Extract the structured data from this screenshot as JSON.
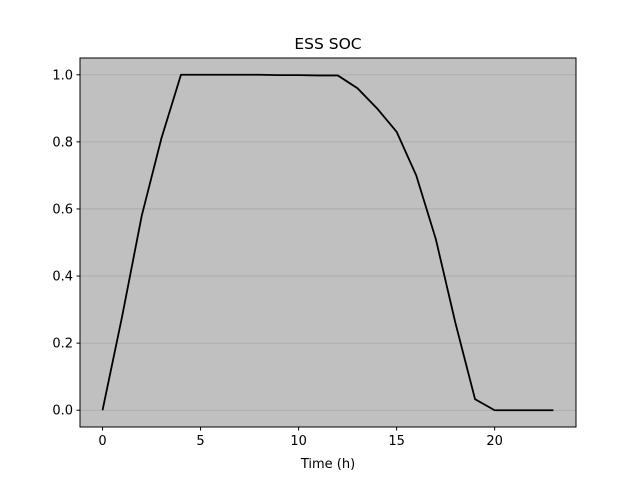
{
  "chart_data": {
    "type": "line",
    "title": "ESS SOC",
    "xlabel": "Time (h)",
    "ylabel": "",
    "xlim": [
      -1.15,
      24.15
    ],
    "ylim": [
      -0.05,
      1.05
    ],
    "x_ticks": [
      0,
      5,
      10,
      15,
      20
    ],
    "y_ticks": [
      0.0,
      0.2,
      0.4,
      0.6,
      0.8,
      1.0
    ],
    "x_tick_labels": [
      "0",
      "5",
      "10",
      "15",
      "20"
    ],
    "y_tick_labels": [
      "0.0",
      "0.2",
      "0.4",
      "0.6",
      "0.8",
      "1.0"
    ],
    "grid": "horizontal",
    "legend": "none",
    "colors": {
      "plot_background": "#c0c0c0",
      "grid": "#a8a8a8",
      "line": "#000000"
    },
    "series": [
      {
        "x": [
          0,
          1,
          2,
          3,
          4,
          5,
          6,
          7,
          8,
          9,
          10,
          11,
          12,
          13,
          14,
          15,
          16,
          17,
          18,
          19,
          20,
          21,
          22,
          23
        ],
        "values": [
          0.0,
          0.28,
          0.58,
          0.81,
          1.0,
          1.0,
          1.0,
          1.0,
          1.0,
          0.999,
          0.999,
          0.998,
          0.998,
          0.96,
          0.9,
          0.83,
          0.7,
          0.51,
          0.26,
          0.033,
          0.0,
          0.0,
          0.0,
          0.0
        ]
      }
    ]
  }
}
